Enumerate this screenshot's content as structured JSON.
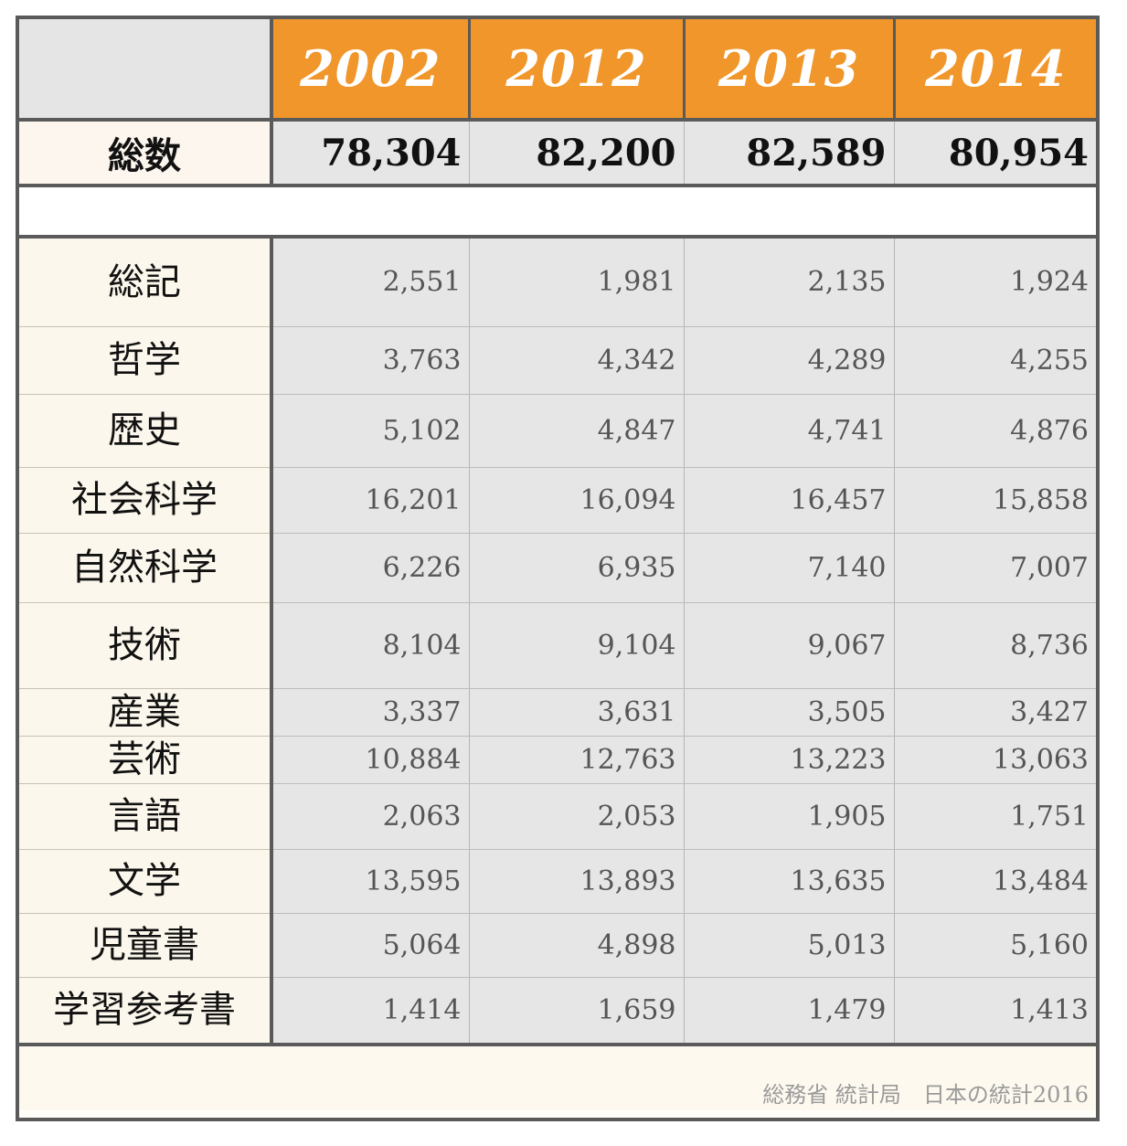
{
  "chart_data": {
    "type": "table",
    "columns": [
      "2002",
      "2012",
      "2013",
      "2014"
    ],
    "total": {
      "label": "総数",
      "values": [
        "78,304",
        "82,200",
        "82,589",
        "80,954"
      ]
    },
    "rows": [
      {
        "label": "総記",
        "values": [
          "2,551",
          "1,981",
          "2,135",
          "1,924"
        ]
      },
      {
        "label": "哲学",
        "values": [
          "3,763",
          "4,342",
          "4,289",
          "4,255"
        ]
      },
      {
        "label": "歴史",
        "values": [
          "5,102",
          "4,847",
          "4,741",
          "4,876"
        ]
      },
      {
        "label": "社会科学",
        "values": [
          "16,201",
          "16,094",
          "16,457",
          "15,858"
        ]
      },
      {
        "label": "自然科学",
        "values": [
          "6,226",
          "6,935",
          "7,140",
          "7,007"
        ]
      },
      {
        "label": "技術",
        "values": [
          "8,104",
          "9,104",
          "9,067",
          "8,736"
        ]
      },
      {
        "label": "産業",
        "values": [
          "3,337",
          "3,631",
          "3,505",
          "3,427"
        ]
      },
      {
        "label": "芸術",
        "values": [
          "10,884",
          "12,763",
          "13,223",
          "13,063"
        ]
      },
      {
        "label": "言語",
        "values": [
          "2,063",
          "2,053",
          "1,905",
          "1,751"
        ]
      },
      {
        "label": "文学",
        "values": [
          "13,595",
          "13,893",
          "13,635",
          "13,484"
        ]
      },
      {
        "label": "児童書",
        "values": [
          "5,064",
          "4,898",
          "5,013",
          "5,160"
        ]
      },
      {
        "label": "学習参考書",
        "values": [
          "1,414",
          "1,659",
          "1,479",
          "1,413"
        ]
      }
    ],
    "source": "総務省 統計局　日本の統計2016"
  },
  "colors": {
    "header_fill": "#f0962a",
    "header_text": "#ffffff",
    "value_cell": "#e6e6e6",
    "label_cell": "#fcf7ec",
    "border": "#5a5a5a"
  }
}
